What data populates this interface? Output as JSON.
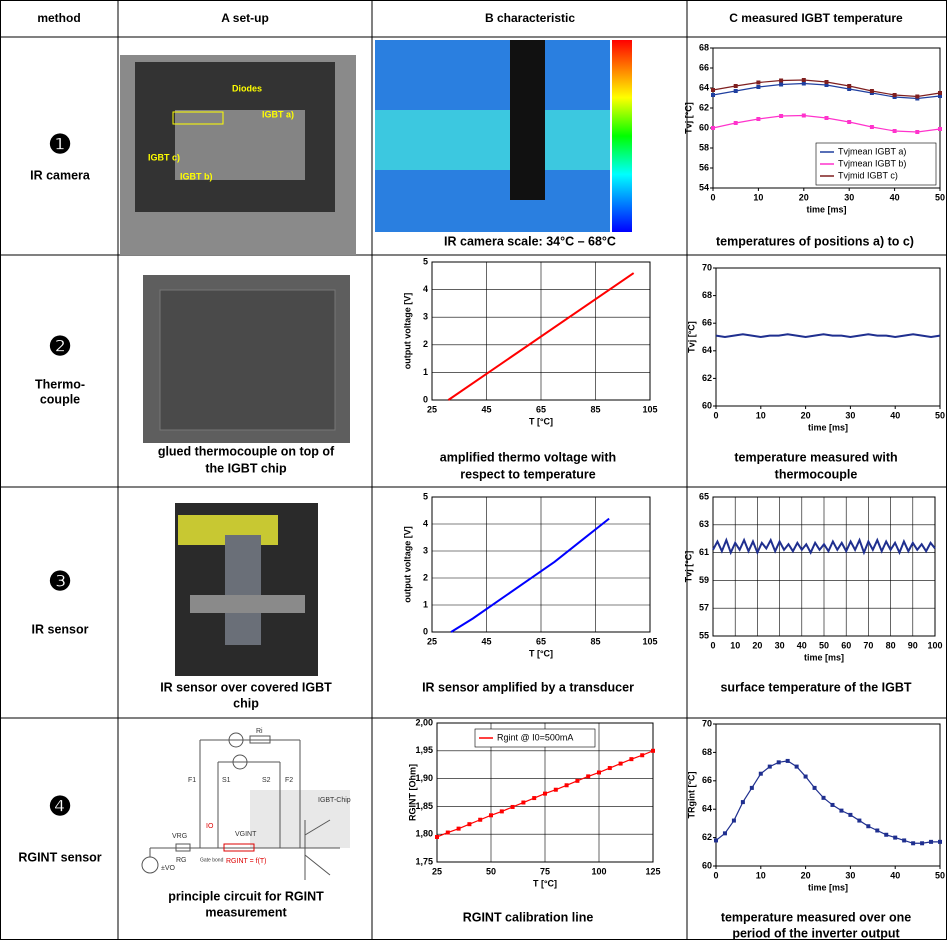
{
  "table": {
    "header": [
      "method",
      "A  set-up",
      "B  characteristic",
      "C  measured IGBT temperature"
    ],
    "rows": [
      {
        "number": "❶",
        "method": [
          "IR camera"
        ],
        "setup_labels": [
          "Diodes",
          "IGBT a)",
          "IGBT c)",
          "IGBT b)"
        ],
        "setup_caption": [],
        "characteristic_caption": [
          "IR camera scale: 34°C – 68°C"
        ],
        "temperature_caption": [
          "temperatures of positions a) to c)"
        ]
      },
      {
        "number": "❷",
        "method": [
          "Thermo-",
          "couple"
        ],
        "setup_labels": [],
        "setup_caption": [
          "glued thermocouple on top of",
          "the IGBT chip"
        ],
        "characteristic_caption": [
          "amplified thermo voltage with",
          "respect to temperature"
        ],
        "temperature_caption": [
          "temperature measured with",
          "thermocouple"
        ]
      },
      {
        "number": "❸",
        "method": [
          "IR sensor"
        ],
        "setup_labels": [],
        "setup_caption": [
          "IR sensor over covered IGBT",
          "chip"
        ],
        "characteristic_caption": [
          "IR sensor amplified by a transducer"
        ],
        "temperature_caption": [
          "surface temperature of the IGBT"
        ]
      },
      {
        "number": "❹",
        "method": [
          "RGINT sensor"
        ],
        "setup_labels": [
          "Ri",
          "F1",
          "S1",
          "S2",
          "F2",
          "VRG",
          "RG",
          "IO",
          "VGINT",
          "RGINT = f(T)",
          "IGBT-Chip",
          "±VO",
          "Gate bond"
        ],
        "setup_caption": [
          "principle circuit for RGINT",
          "measurement"
        ],
        "characteristic_caption": [
          "RGINT calibration line"
        ],
        "temperature_caption": [
          "temperature measured over one",
          "period of the inverter output"
        ]
      }
    ]
  },
  "chart_data": [
    {
      "type": "line",
      "xlabel": "time [ms]",
      "ylabel": "Tvj [°C]",
      "xlim": [
        0,
        50
      ],
      "xticks": [
        0,
        10,
        20,
        30,
        40,
        50
      ],
      "ylim": [
        54,
        68
      ],
      "yticks": [
        54,
        56,
        58,
        60,
        62,
        64,
        66,
        68
      ],
      "grid": false,
      "markers": true,
      "legend": "lower right",
      "x": [
        0,
        5,
        10,
        15,
        20,
        25,
        30,
        35,
        40,
        45,
        50
      ],
      "series": [
        {
          "name": "Tvjmean IGBT a)",
          "color": "#1f3f9f",
          "values": [
            63.3,
            63.7,
            64.1,
            64.35,
            64.45,
            64.3,
            63.9,
            63.5,
            63.1,
            62.95,
            63.2
          ]
        },
        {
          "name": "Tvjmean IGBT b)",
          "color": "#ff33cc",
          "values": [
            60.0,
            60.5,
            60.9,
            61.2,
            61.25,
            61.0,
            60.6,
            60.1,
            59.7,
            59.6,
            59.9
          ]
        },
        {
          "name": "Tvjmid IGBT c)",
          "color": "#7f1f1f",
          "values": [
            63.8,
            64.2,
            64.55,
            64.75,
            64.8,
            64.6,
            64.2,
            63.7,
            63.3,
            63.15,
            63.5
          ]
        }
      ]
    },
    {
      "type": "line",
      "xlabel": "T [°C]",
      "ylabel": "output voltage [V]",
      "xlim": [
        25,
        105
      ],
      "xticks": [
        25,
        45,
        65,
        85,
        105
      ],
      "ylim": [
        0,
        5
      ],
      "yticks": [
        0,
        1,
        2,
        3,
        4,
        5
      ],
      "grid": true,
      "color": "#ff0000",
      "x": [
        31,
        99
      ],
      "values": [
        0,
        4.6
      ]
    },
    {
      "type": "line",
      "xlabel": "time [ms]",
      "ylabel": "Tvj [°C]",
      "xlim": [
        0,
        50
      ],
      "xticks": [
        0,
        10,
        20,
        30,
        40,
        50
      ],
      "ylim": [
        60,
        70
      ],
      "yticks": [
        60,
        62,
        64,
        66,
        68,
        70
      ],
      "grid": false,
      "color": "#1f2f8f",
      "x": [
        0,
        2,
        4,
        6,
        8,
        10,
        12,
        14,
        16,
        18,
        20,
        22,
        24,
        26,
        28,
        30,
        32,
        34,
        36,
        38,
        40,
        42,
        44,
        46,
        48,
        50
      ],
      "values": [
        65.1,
        65.0,
        65.1,
        65.2,
        65.1,
        65.0,
        65.1,
        65.1,
        65.2,
        65.1,
        65.0,
        65.1,
        65.2,
        65.1,
        65.1,
        65.0,
        65.1,
        65.2,
        65.1,
        65.1,
        65.0,
        65.1,
        65.2,
        65.1,
        65.0,
        65.1
      ]
    },
    {
      "type": "line",
      "xlabel": "T [°C]",
      "ylabel": "output voltage [V]",
      "xlim": [
        25,
        105
      ],
      "xticks": [
        25,
        45,
        65,
        85,
        105
      ],
      "ylim": [
        0,
        5
      ],
      "yticks": [
        0,
        1,
        2,
        3,
        4,
        5
      ],
      "grid": true,
      "color": "#0000ff",
      "x": [
        32,
        40,
        50,
        60,
        70,
        80,
        90
      ],
      "values": [
        0,
        0.5,
        1.2,
        1.9,
        2.6,
        3.4,
        4.2
      ]
    },
    {
      "type": "line",
      "xlabel": "time [ms]",
      "ylabel": "Tvj [°C]",
      "xlim": [
        0,
        100
      ],
      "xticks": [
        0,
        10,
        20,
        30,
        40,
        50,
        60,
        70,
        80,
        90,
        100
      ],
      "ylim": [
        55,
        65
      ],
      "yticks": [
        55,
        57,
        59,
        61,
        63,
        65
      ],
      "grid": true,
      "color": "#1f2f8f",
      "x": [
        0,
        2,
        4,
        6,
        8,
        10,
        12,
        14,
        16,
        18,
        20,
        22,
        24,
        26,
        28,
        30,
        32,
        34,
        36,
        38,
        40,
        42,
        44,
        46,
        48,
        50,
        52,
        54,
        56,
        58,
        60,
        62,
        64,
        66,
        68,
        70,
        72,
        74,
        76,
        78,
        80,
        82,
        84,
        86,
        88,
        90,
        92,
        94,
        96,
        98,
        100
      ],
      "values": [
        61.2,
        61.8,
        61.1,
        61.9,
        61.0,
        61.7,
        61.2,
        61.9,
        61.1,
        61.8,
        61.0,
        61.7,
        61.3,
        61.9,
        61.1,
        61.8,
        61.2,
        61.6,
        61.1,
        61.7,
        61.2,
        61.6,
        61.0,
        61.7,
        61.2,
        61.6,
        61.1,
        61.8,
        61.2,
        61.7,
        61.1,
        61.8,
        61.2,
        61.9,
        61.0,
        61.8,
        61.2,
        61.9,
        61.1,
        61.8,
        61.2,
        61.7,
        61.0,
        61.8,
        61.1,
        61.7,
        61.2,
        61.6,
        61.1,
        61.7,
        61.3
      ]
    },
    {
      "type": "line",
      "xlabel": "T [°C]",
      "ylabel": "RGINT [Ohm]",
      "xlim": [
        25,
        125
      ],
      "xticks": [
        25,
        50,
        75,
        100,
        125
      ],
      "ylim": [
        1.75,
        2.0
      ],
      "yticks": [
        {
          "value": 1.75,
          "label": "1,75"
        },
        {
          "value": 1.8,
          "label": "1,80"
        },
        {
          "value": 1.85,
          "label": "1,85"
        },
        {
          "value": 1.9,
          "label": "1,90"
        },
        {
          "value": 1.95,
          "label": "1,95"
        },
        {
          "value": 2.0,
          "label": "2,00"
        }
      ],
      "grid": true,
      "markers": true,
      "legend": "upper center",
      "x": [
        25,
        30,
        35,
        40,
        45,
        50,
        55,
        60,
        65,
        70,
        75,
        80,
        85,
        90,
        95,
        100,
        105,
        110,
        115,
        120,
        125
      ],
      "series": [
        {
          "name": "Rgint @ I0=500mA",
          "color": "#ff0000",
          "values": [
            1.795,
            1.803,
            1.81,
            1.818,
            1.826,
            1.834,
            1.841,
            1.849,
            1.857,
            1.865,
            1.873,
            1.88,
            1.888,
            1.896,
            1.904,
            1.911,
            1.919,
            1.927,
            1.935,
            1.942,
            1.95
          ]
        }
      ]
    },
    {
      "type": "line",
      "xlabel": "time [ms]",
      "ylabel": "TRgint [°C]",
      "xlim": [
        0,
        50
      ],
      "xticks": [
        0,
        10,
        20,
        30,
        40,
        50
      ],
      "ylim": [
        60,
        70
      ],
      "yticks": [
        60,
        62,
        64,
        66,
        68,
        70
      ],
      "grid": false,
      "markers": true,
      "color": "#1f2f8f",
      "x": [
        0,
        2,
        4,
        6,
        8,
        10,
        12,
        14,
        16,
        18,
        20,
        22,
        24,
        26,
        28,
        30,
        32,
        34,
        36,
        38,
        40,
        42,
        44,
        46,
        48,
        50
      ],
      "values": [
        61.8,
        62.3,
        63.2,
        64.5,
        65.5,
        66.5,
        67.0,
        67.3,
        67.4,
        67.0,
        66.3,
        65.5,
        64.8,
        64.3,
        63.9,
        63.6,
        63.2,
        62.8,
        62.5,
        62.2,
        62.0,
        61.8,
        61.6,
        61.6,
        61.7,
        61.7
      ]
    }
  ]
}
